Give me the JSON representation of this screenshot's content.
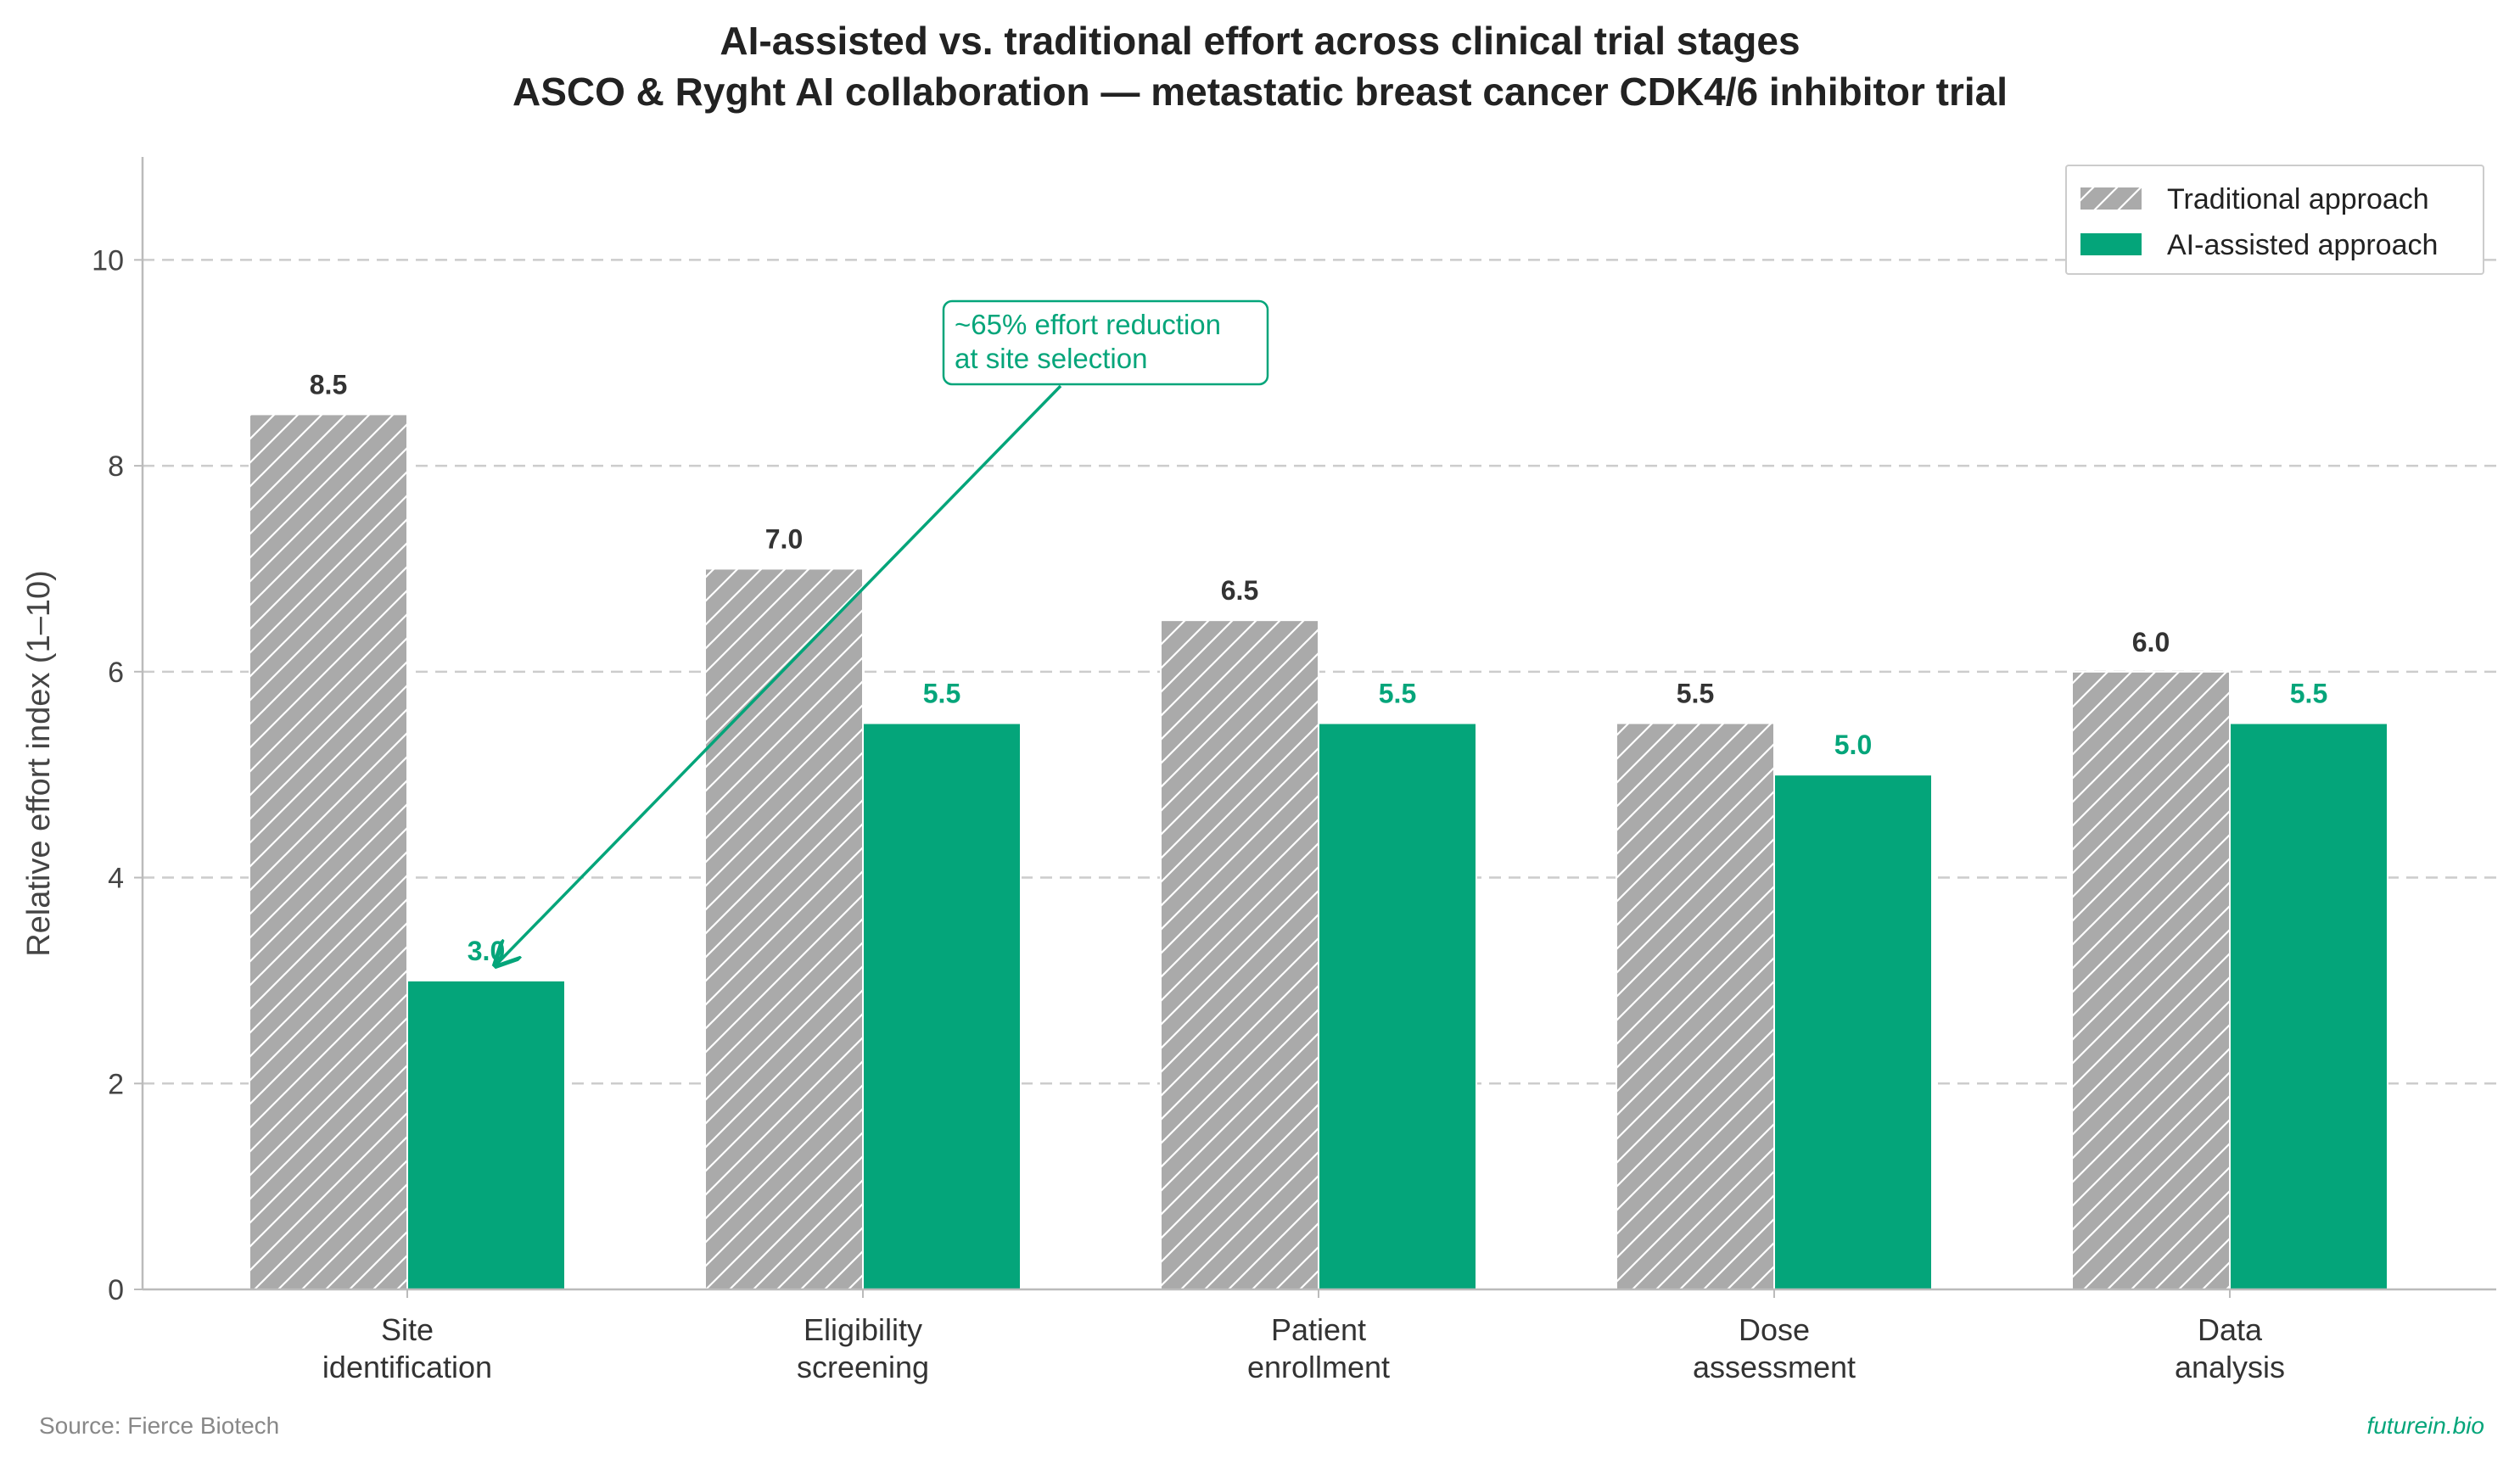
{
  "chart_data": {
    "type": "bar",
    "title": "AI-assisted vs. traditional effort across clinical trial stages",
    "subtitle": "ASCO & Ryght AI collaboration — metastatic breast cancer CDK4/6 inhibitor trial",
    "xlabel": "",
    "ylabel": "Relative effort index (1–10)",
    "ylim": [
      0,
      11
    ],
    "yticks": [
      "0",
      "2",
      "4",
      "6",
      "8",
      "10"
    ],
    "ytick_values": [
      0,
      2,
      4,
      6,
      8,
      10
    ],
    "categories": [
      [
        "Site",
        "identification"
      ],
      [
        "Eligibility",
        "screening"
      ],
      [
        "Patient",
        "enrollment"
      ],
      [
        "Dose",
        "assessment"
      ],
      [
        "Data",
        "analysis"
      ]
    ],
    "series": [
      {
        "name": "Traditional approach",
        "values": [
          8.5,
          7.0,
          6.5,
          5.5,
          6.0
        ],
        "value_labels": [
          "8.5",
          "7.0",
          "6.5",
          "5.5",
          "6.0"
        ],
        "color": "#aaaaaa",
        "pattern": "hatched"
      },
      {
        "name": "AI-assisted approach",
        "values": [
          3.0,
          5.5,
          5.5,
          5.0,
          5.5
        ],
        "value_labels": [
          "3.0",
          "5.5",
          "5.5",
          "5.0",
          "5.5"
        ],
        "color": "#04a57a"
      }
    ],
    "grid": "horizontal dashed",
    "legend_position": "top-right",
    "annotation": {
      "lines": [
        "~65% effort reduction",
        "at site selection"
      ],
      "points_to": {
        "category": "Site identification",
        "series": "AI-assisted approach",
        "value": 3.0
      }
    }
  },
  "footer": {
    "source": "Source: Fierce Biotech",
    "brand": "futurein.bio"
  }
}
